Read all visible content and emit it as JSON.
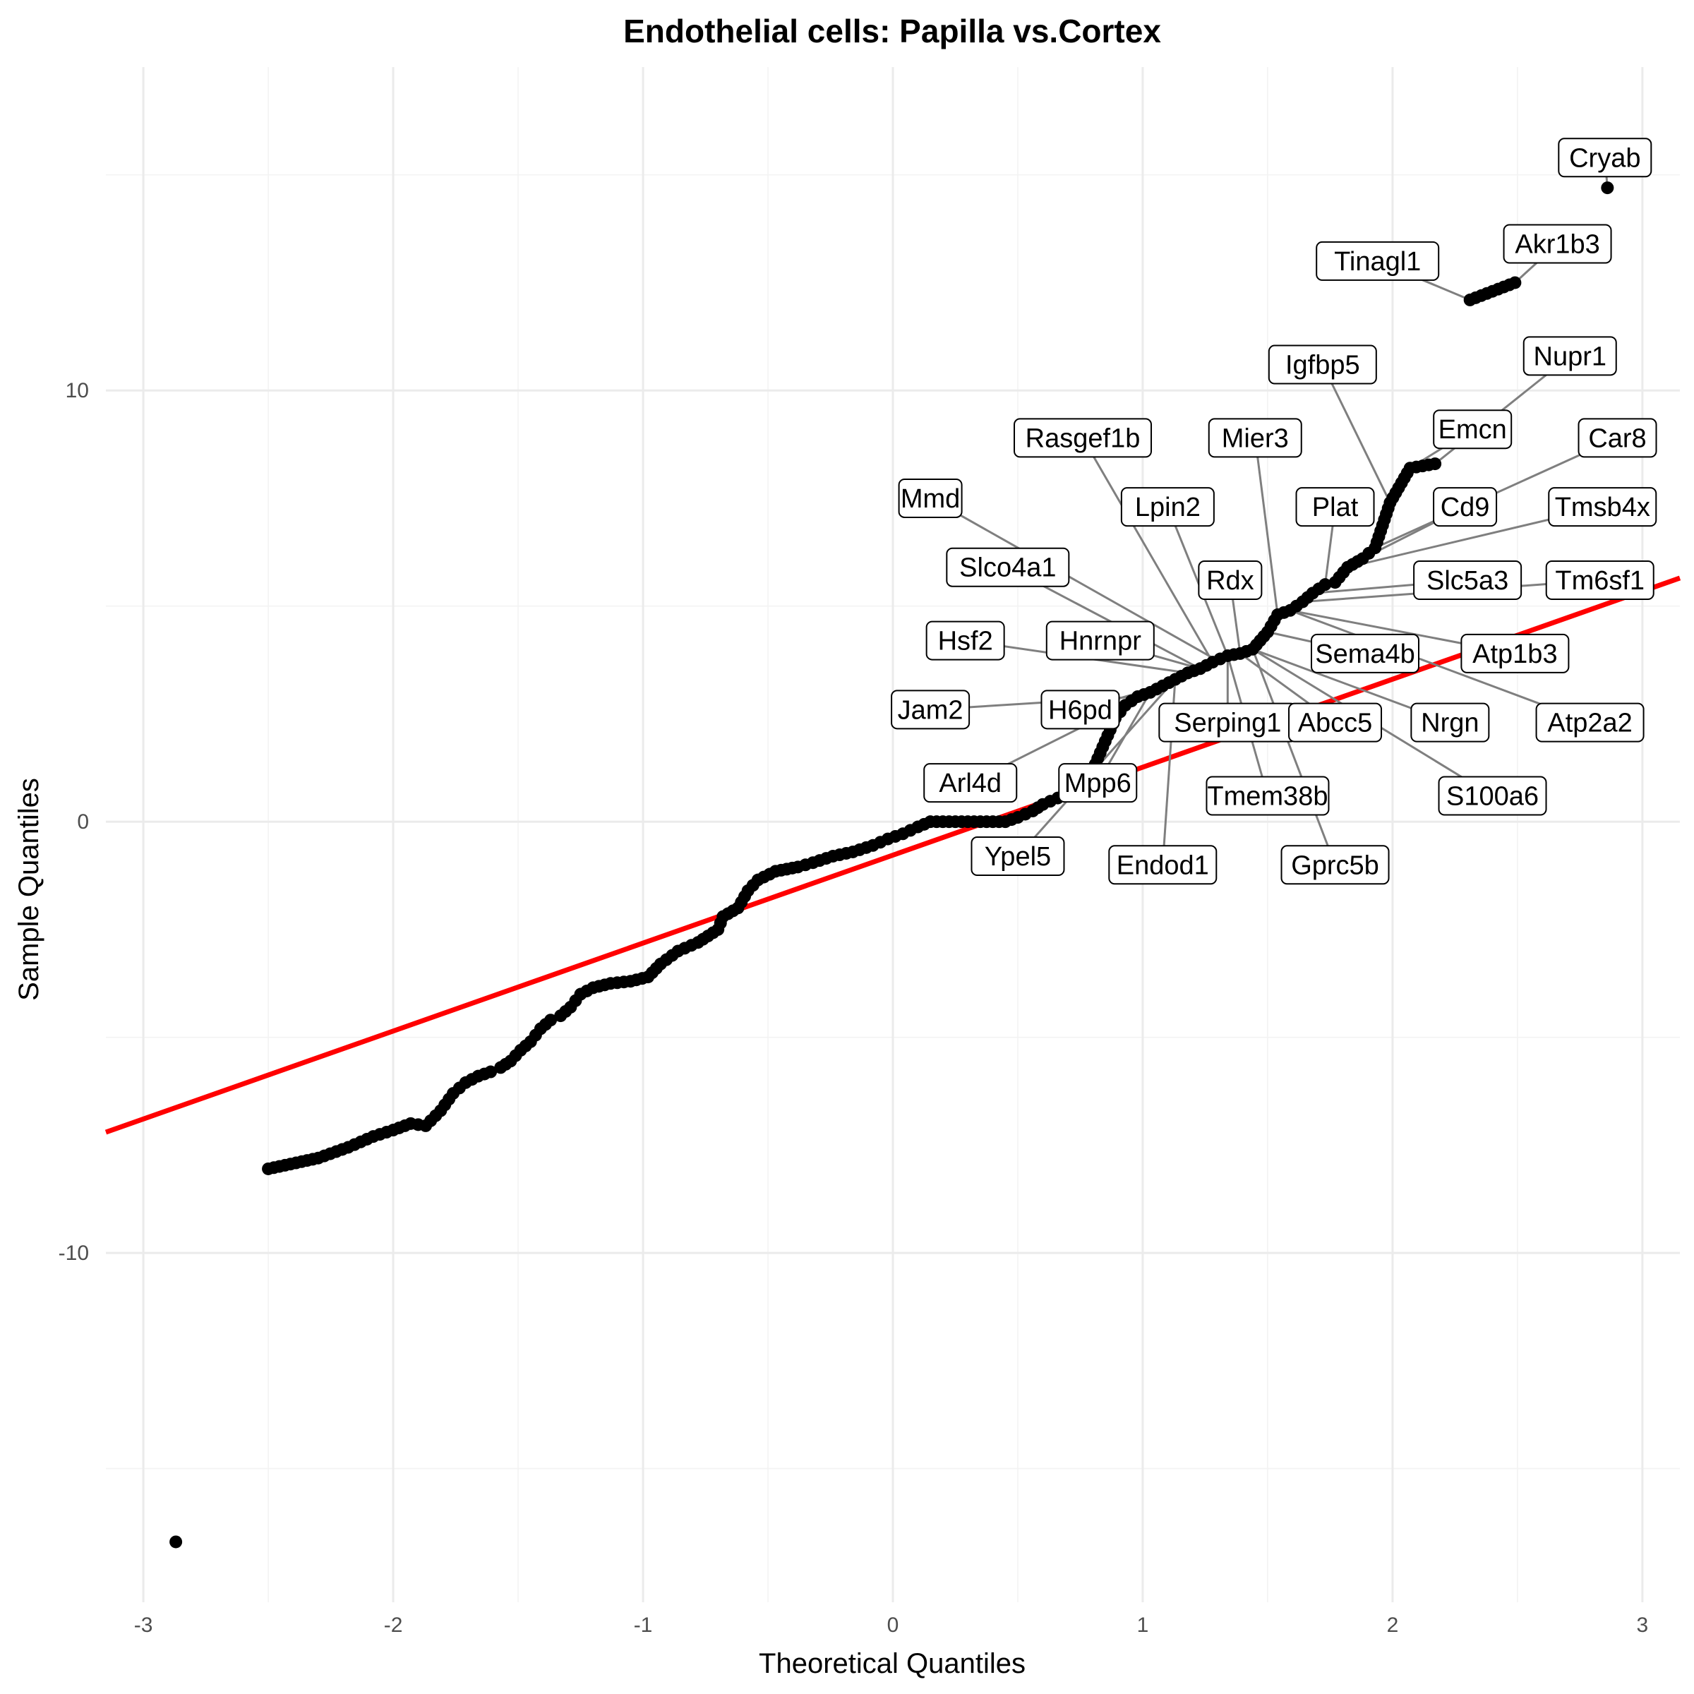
{
  "chart_data": {
    "type": "scatter",
    "title": "Endothelial cells: Papilla vs.Cortex",
    "xlabel": "Theoretical Quantiles",
    "ylabel": "Sample Quantiles",
    "xlim": [
      -3.15,
      3.15
    ],
    "ylim": [
      -18.1,
      17.5
    ],
    "x_ticks": [
      -3,
      -2,
      -1,
      0,
      1,
      2,
      3
    ],
    "x_tick_labels": [
      "-3",
      "-2",
      "-1",
      "0",
      "1",
      "2",
      "3"
    ],
    "y_ticks": [
      -10,
      0,
      10
    ],
    "y_tick_labels": [
      "-10",
      "0",
      "10"
    ],
    "grid": true,
    "reference_line": {
      "color": "#ff0000",
      "x": [
        -3.15,
        3.15
      ],
      "y": [
        -7.2,
        5.65
      ]
    },
    "points": [
      [
        -2.87,
        -16.7
      ],
      [
        -2.5,
        -8.05
      ],
      [
        -2.3,
        -7.8
      ],
      [
        -2.18,
        -7.55
      ],
      [
        -2.08,
        -7.3
      ],
      [
        -2.0,
        -7.15
      ],
      [
        -1.93,
        -7.0
      ],
      [
        -1.87,
        -7.05
      ],
      [
        -1.81,
        -6.7
      ],
      [
        -1.76,
        -6.3
      ],
      [
        -1.71,
        -6.05
      ],
      [
        -1.66,
        -5.9
      ],
      [
        -1.61,
        -5.8
      ],
      [
        -1.57,
        -5.7
      ],
      [
        -1.53,
        -5.55
      ],
      [
        -1.49,
        -5.3
      ],
      [
        -1.45,
        -5.1
      ],
      [
        -1.41,
        -4.8
      ],
      [
        -1.37,
        -4.6
      ],
      [
        -1.33,
        -4.5
      ],
      [
        -1.29,
        -4.3
      ],
      [
        -1.25,
        -4.0
      ],
      [
        -1.2,
        -3.85
      ],
      [
        -1.13,
        -3.75
      ],
      [
        -1.05,
        -3.7
      ],
      [
        -0.98,
        -3.6
      ],
      [
        -0.93,
        -3.3
      ],
      [
        -0.86,
        -3.0
      ],
      [
        -0.78,
        -2.8
      ],
      [
        -0.7,
        -2.5
      ],
      [
        -0.68,
        -2.2
      ],
      [
        -0.62,
        -2.0
      ],
      [
        -0.58,
        -1.6
      ],
      [
        -0.54,
        -1.35
      ],
      [
        -0.47,
        -1.15
      ],
      [
        -0.38,
        -1.05
      ],
      [
        -0.32,
        -0.95
      ],
      [
        -0.24,
        -0.8
      ],
      [
        -0.16,
        -0.7
      ],
      [
        -0.08,
        -0.55
      ],
      [
        -0.02,
        -0.4
      ],
      [
        0.04,
        -0.28
      ],
      [
        0.1,
        -0.12
      ],
      [
        0.15,
        0.0
      ],
      [
        0.25,
        0.0
      ],
      [
        0.35,
        0.0
      ],
      [
        0.45,
        0.0
      ],
      [
        0.5,
        0.1
      ],
      [
        0.56,
        0.25
      ],
      [
        0.6,
        0.4
      ],
      [
        0.66,
        0.55
      ],
      [
        0.72,
        0.7
      ],
      [
        0.77,
        0.9
      ],
      [
        0.8,
        1.2
      ],
      [
        0.83,
        1.6
      ],
      [
        0.86,
        2.0
      ],
      [
        0.89,
        2.4
      ],
      [
        0.93,
        2.7
      ],
      [
        0.98,
        2.9
      ],
      [
        1.03,
        3.0
      ],
      [
        1.08,
        3.15
      ],
      [
        1.13,
        3.3
      ],
      [
        1.18,
        3.45
      ],
      [
        1.23,
        3.55
      ],
      [
        1.28,
        3.7
      ],
      [
        1.34,
        3.85
      ],
      [
        1.39,
        3.9
      ],
      [
        1.44,
        4.0
      ],
      [
        1.5,
        4.4
      ],
      [
        1.54,
        4.8
      ],
      [
        1.59,
        4.9
      ],
      [
        1.64,
        5.1
      ],
      [
        1.68,
        5.3
      ],
      [
        1.73,
        5.5
      ],
      [
        1.77,
        5.55
      ],
      [
        1.82,
        5.9
      ],
      [
        1.88,
        6.1
      ],
      [
        1.93,
        6.35
      ],
      [
        1.99,
        7.4
      ],
      [
        2.07,
        8.2
      ],
      [
        2.17,
        8.3
      ],
      [
        2.31,
        12.1
      ],
      [
        2.49,
        12.5
      ],
      [
        2.86,
        14.7
      ]
    ],
    "labels": [
      {
        "text": "Cryab",
        "bx": 2.85,
        "by": 15.4,
        "px": 2.86,
        "py": 14.7
      },
      {
        "text": "Akr1b3",
        "bx": 2.66,
        "by": 13.4,
        "px": 2.49,
        "py": 12.5
      },
      {
        "text": "Tinagl1",
        "bx": 1.94,
        "by": 13.0,
        "px": 2.31,
        "py": 12.1
      },
      {
        "text": "Igfbp5",
        "bx": 1.72,
        "by": 10.6,
        "px": 1.99,
        "py": 7.4
      },
      {
        "text": "Nupr1",
        "bx": 2.71,
        "by": 10.8,
        "px": 2.17,
        "py": 8.3
      },
      {
        "text": "Emcn",
        "bx": 2.32,
        "by": 9.1,
        "px": 2.07,
        "py": 8.2
      },
      {
        "text": "Car8",
        "bx": 2.9,
        "by": 8.9,
        "px": 1.93,
        "py": 6.35
      },
      {
        "text": "Mier3",
        "bx": 1.45,
        "by": 8.9,
        "px": 1.54,
        "py": 4.8
      },
      {
        "text": "Rasgef1b",
        "bx": 0.76,
        "by": 8.9,
        "px": 1.28,
        "py": 3.7
      },
      {
        "text": "Mmd",
        "bx": 0.15,
        "by": 7.5,
        "px": 1.28,
        "py": 3.8
      },
      {
        "text": "Lpin2",
        "bx": 1.1,
        "by": 7.3,
        "px": 1.34,
        "py": 3.85
      },
      {
        "text": "Plat",
        "bx": 1.77,
        "by": 7.3,
        "px": 1.73,
        "py": 5.5
      },
      {
        "text": "Cd9",
        "bx": 2.29,
        "by": 7.3,
        "px": 1.88,
        "py": 6.1
      },
      {
        "text": "Tmsb4x",
        "bx": 2.84,
        "by": 7.3,
        "px": 1.82,
        "py": 5.9
      },
      {
        "text": "Slco4a1",
        "bx": 0.46,
        "by": 5.9,
        "px": 1.23,
        "py": 3.55
      },
      {
        "text": "Rdx",
        "bx": 1.35,
        "by": 5.6,
        "px": 1.39,
        "py": 3.9
      },
      {
        "text": "Slc5a3",
        "bx": 2.3,
        "by": 5.6,
        "px": 1.68,
        "py": 5.3
      },
      {
        "text": "Tm6sf1",
        "bx": 2.83,
        "by": 5.6,
        "px": 1.64,
        "py": 5.1
      },
      {
        "text": "Hsf2",
        "bx": 0.29,
        "by": 4.2,
        "px": 1.18,
        "py": 3.45
      },
      {
        "text": "Hnrnpr",
        "bx": 0.83,
        "by": 4.2,
        "px": 1.23,
        "py": 3.55
      },
      {
        "text": "Sema4b",
        "bx": 1.89,
        "by": 3.9,
        "px": 1.5,
        "py": 4.4
      },
      {
        "text": "Atp1b3",
        "bx": 2.49,
        "by": 3.9,
        "px": 1.59,
        "py": 4.9
      },
      {
        "text": "Jam2",
        "bx": 0.15,
        "by": 2.6,
        "px": 0.98,
        "py": 2.9
      },
      {
        "text": "H6pd",
        "bx": 0.75,
        "by": 2.6,
        "px": 1.08,
        "py": 3.15
      },
      {
        "text": "Serping1",
        "bx": 1.34,
        "by": 2.3,
        "px": 1.34,
        "py": 3.85
      },
      {
        "text": "Abcc5",
        "bx": 1.77,
        "by": 2.3,
        "px": 1.39,
        "py": 3.9
      },
      {
        "text": "Nrgn",
        "bx": 2.23,
        "by": 2.3,
        "px": 1.44,
        "py": 4.0
      },
      {
        "text": "Atp2a2",
        "bx": 2.79,
        "by": 2.3,
        "px": 1.59,
        "py": 4.9
      },
      {
        "text": "Arl4d",
        "bx": 0.31,
        "by": 0.9,
        "px": 0.93,
        "py": 2.7
      },
      {
        "text": "Mpp6",
        "bx": 0.82,
        "by": 0.9,
        "px": 1.03,
        "py": 3.0
      },
      {
        "text": "Tmem38b",
        "bx": 1.5,
        "by": 0.6,
        "px": 1.34,
        "py": 3.85
      },
      {
        "text": "S100a6",
        "bx": 2.4,
        "by": 0.6,
        "px": 1.44,
        "py": 4.0
      },
      {
        "text": "Ypel5",
        "bx": 0.5,
        "by": -0.8,
        "px": 1.13,
        "py": 3.3
      },
      {
        "text": "Endod1",
        "bx": 1.08,
        "by": -1.0,
        "px": 1.13,
        "py": 3.3
      },
      {
        "text": "Gprc5b",
        "bx": 1.77,
        "by": -1.0,
        "px": 1.44,
        "py": 4.0
      }
    ]
  }
}
